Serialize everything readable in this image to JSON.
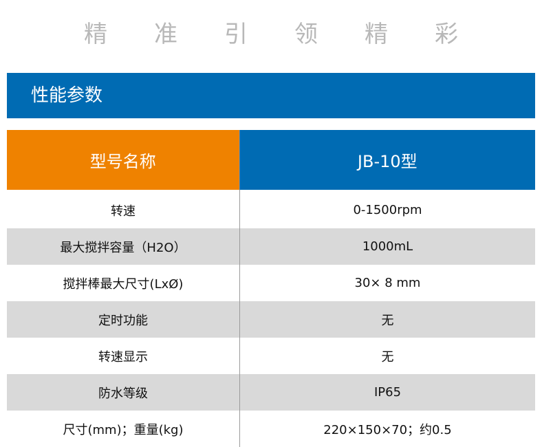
{
  "slogan": [
    "精",
    "准",
    "引",
    "领",
    "精",
    "彩"
  ],
  "section_title": "性能参数",
  "table": {
    "header": {
      "label": "型号名称",
      "model": "JB-10型"
    },
    "rows": [
      {
        "label": "转速",
        "value": "0-1500rpm"
      },
      {
        "label": "最大搅拌容量（H2O）",
        "value": "1000mL"
      },
      {
        "label": "搅拌棒最大尺寸(LxØ)",
        "value": "30× 8 mm"
      },
      {
        "label": "定时功能",
        "value": "无"
      },
      {
        "label": "转速显示",
        "value": "无"
      },
      {
        "label": "防水等级",
        "value": "IP65"
      },
      {
        "label": "尺寸(mm)；重量(kg)",
        "value": "220×150×70；约0.5"
      }
    ]
  },
  "colors": {
    "brand_blue": "#006bb3",
    "accent_orange": "#ef8200",
    "row_alt": "#d9d9d9"
  }
}
